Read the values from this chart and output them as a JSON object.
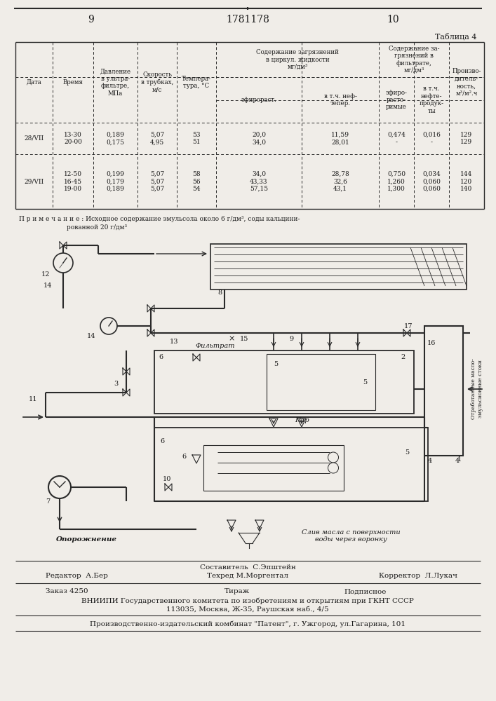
{
  "page_number_left": "9",
  "patent_number": "1781178",
  "page_number_right": "10",
  "table_title": "Таблица 4",
  "note": "П р и м е ч а н и е : Исходное содержание эмульсола около 6 г/дм³, соды кальцини-\n                    рованной 20 г/дм³",
  "editor": "Редактор  А.Бер",
  "corrector": "Корректор  Л.Лукач",
  "order": "Заказ 4250",
  "circulation": "Тираж",
  "subscription": "Подписное",
  "org_line1": "ВНИИПИ Государственного комитета по изобретениям и открытиям при ГКНТ СССР",
  "org_line2": "113035, Москва, Ж-35, Раушская наб., 4/5",
  "publisher": "Производственно-издательский комбинат \"Патент\", г. Ужгород, ул.Гагарина, 101",
  "bg_color": "#f0ede8",
  "text_color": "#1a1a1a",
  "line_color": "#2a2a2a"
}
